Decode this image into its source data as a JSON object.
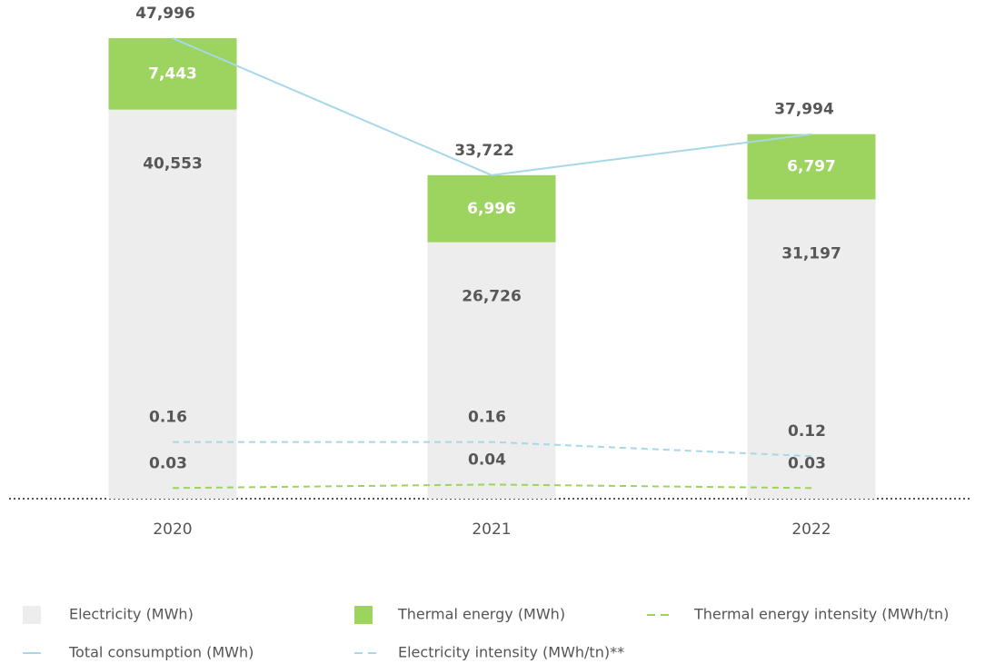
{
  "chart_data": {
    "type": "bar",
    "categories": [
      "2020",
      "2021",
      "2022"
    ],
    "ylim": [
      0,
      48000
    ],
    "y2lim": [
      0,
      1.3
    ],
    "series": [
      {
        "name": "Electricity (MWh)",
        "mark": "bar",
        "color": "#ededed",
        "values": [
          40553,
          26726,
          31197
        ],
        "value_labels": [
          "40,553",
          "26,726",
          "31,197"
        ]
      },
      {
        "name": "Thermal energy (MWh)",
        "mark": "bar",
        "color": "#9dd35f",
        "values": [
          7443,
          6996,
          6797
        ],
        "value_labels": [
          "7,443",
          "6,996",
          "6,797"
        ]
      },
      {
        "name": "Thermal energy intensity (MWh/tn)",
        "mark": "dashed-line",
        "axis": "y2",
        "color": "#9dd35f",
        "values": [
          0.03,
          0.04,
          0.03
        ]
      },
      {
        "name": "Total consumption (MWh)",
        "mark": "line",
        "color": "#a6d8e6",
        "values": [
          47996,
          33722,
          37994
        ],
        "value_labels": [
          "47,996",
          "33,722",
          "37,994"
        ]
      },
      {
        "name": "Electricity intensity (MWh/tn)**",
        "mark": "dashed-line",
        "axis": "y2",
        "color": "#a6d8e6",
        "values": [
          0.16,
          0.16,
          0.12
        ]
      }
    ]
  }
}
